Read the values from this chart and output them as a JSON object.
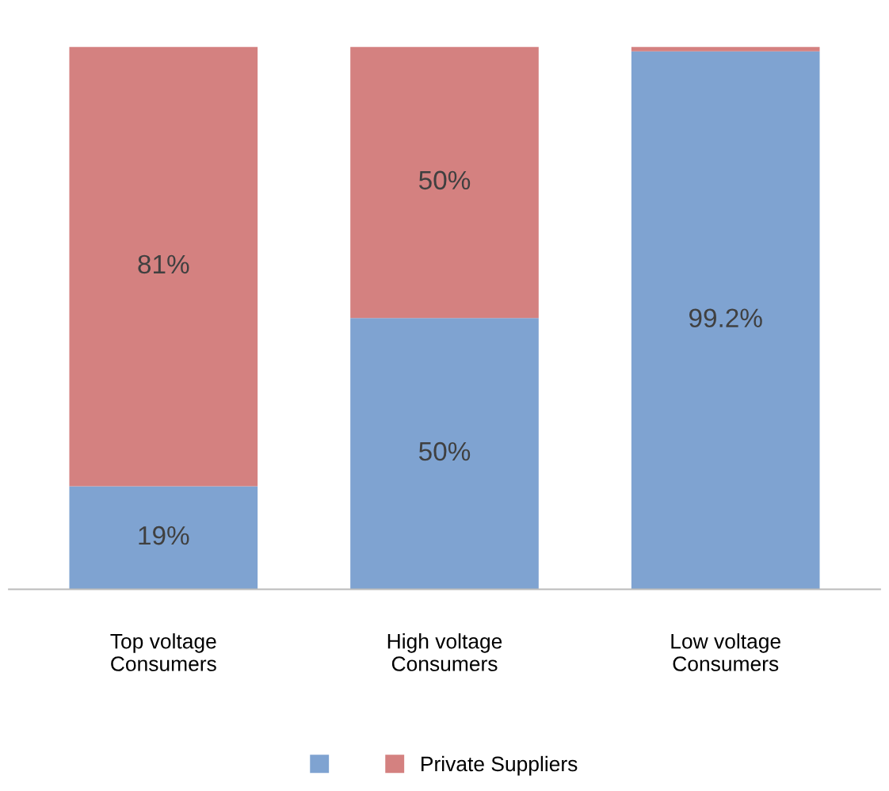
{
  "chart_data": {
    "type": "bar",
    "stacked": true,
    "categories": [
      "Top voltage\nConsumers",
      "High voltage\nConsumers",
      "Low voltage\nConsumers"
    ],
    "series": [
      {
        "color": "#7fa3d1",
        "values": [
          19,
          50,
          99.2
        ],
        "value_labels": [
          "19%",
          "50%",
          "99.2%"
        ]
      },
      {
        "name": "Private Suppliers",
        "color": "#d48180",
        "values": [
          81,
          50,
          0.8
        ],
        "value_labels": [
          "81%",
          "50%",
          null
        ]
      }
    ],
    "legend": "bottom",
    "grid": false
  }
}
